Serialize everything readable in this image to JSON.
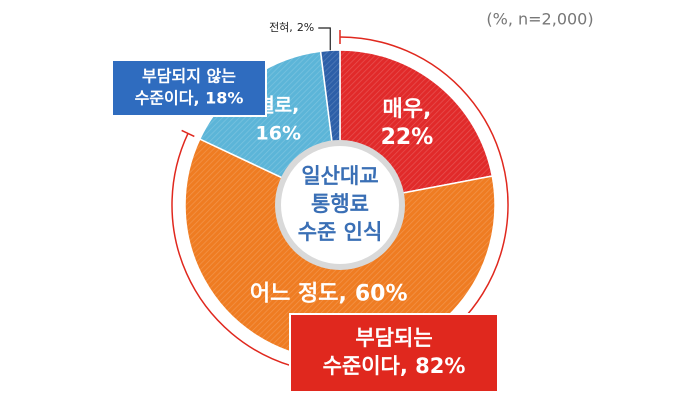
{
  "chart_data": {
    "type": "donut",
    "subtitle": "(%, n=2,000)",
    "center_label": [
      "일산대교",
      "통행료",
      "수준 인식"
    ],
    "categories": [
      "매우,",
      "어느 정도,",
      "별로,",
      "전혀,"
    ],
    "values": [
      22,
      60,
      16,
      2
    ],
    "value_labels": [
      "22%",
      "60%",
      "16%",
      "2%"
    ],
    "colors": [
      "#e12a2a",
      "#ef7c22",
      "#5cb5d8",
      "#2d5fa8"
    ],
    "groups": [
      {
        "lines": [
          "부담되는",
          "수준이다, 82%"
        ],
        "value": 82,
        "color": "#e0281e"
      },
      {
        "lines": [
          "부담되지 않는",
          "수준이다, 18%"
        ],
        "color": "#2f6cbf"
      }
    ]
  }
}
